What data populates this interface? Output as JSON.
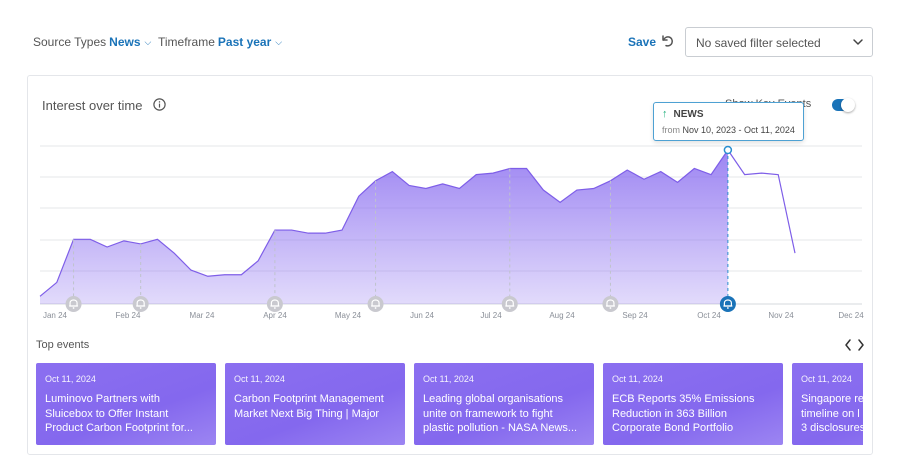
{
  "filters": {
    "source_label": "Source Types",
    "source_value": "News",
    "timeframe_label": "Timeframe",
    "timeframe_value": "Past year"
  },
  "actions": {
    "save_label": "Save",
    "saved_filter_text": "No saved filter selected"
  },
  "chart_card": {
    "title": "Interest over time",
    "toggle_label": "Show Key Events",
    "toggle_on": true
  },
  "tooltip": {
    "series": "NEWS",
    "from_label": "from",
    "range": "Nov 10, 2023 - Oct 11, 2024"
  },
  "chart_data": {
    "type": "area",
    "title": "Interest over time",
    "x_ticks": [
      "Jan 24",
      "Feb 24",
      "Mar 24",
      "Apr 24",
      "May 24",
      "Jun 24",
      "Jul 24",
      "Aug 24",
      "Sep 24",
      "Oct 24",
      "Nov 24",
      "Dec 24"
    ],
    "ylim": [
      0,
      100
    ],
    "grid": true,
    "series": [
      {
        "values": [
          5,
          14,
          42,
          42,
          37,
          41,
          39,
          42,
          33,
          22,
          18,
          19,
          19,
          28,
          48,
          48,
          46,
          46,
          48,
          70,
          80,
          86,
          77,
          75,
          78,
          75,
          84,
          85,
          88,
          88,
          74,
          66,
          74,
          75,
          80,
          87,
          81,
          86,
          79,
          88,
          84,
          100
        ],
        "color": "#8b6ff0"
      },
      {
        "values": [
          100,
          84,
          85,
          84,
          33
        ],
        "color": "#8b6ff0"
      }
    ],
    "key_events": [
      2,
      6,
      14,
      20,
      28,
      34,
      41
    ]
  },
  "events_section": {
    "title": "Top events",
    "cards": [
      {
        "date": "Oct 11, 2024",
        "lines": [
          "Luminovo Partners with",
          "Sluicebox to Offer Instant",
          "Product Carbon Footprint for..."
        ]
      },
      {
        "date": "Oct 11, 2024",
        "lines": [
          "Carbon Footprint Management",
          "Market Next Big Thing | Major"
        ]
      },
      {
        "date": "Oct 11, 2024",
        "lines": [
          "Leading global organisations",
          "unite on framework to fight",
          "plastic pollution - NASA News..."
        ]
      },
      {
        "date": "Oct 11, 2024",
        "lines": [
          "ECB Reports 35% Emissions",
          "Reduction in 363 Billion",
          "Corporate Bond Portfolio"
        ]
      },
      {
        "date": "Oct 11, 2024",
        "lines": [
          "Singapore re",
          "timeline on l",
          "3 disclosures"
        ]
      }
    ]
  },
  "colors": {
    "accent": "#1a73b8",
    "area_fill": "#8b6ff0",
    "event_card": "#8b6ff0",
    "marker_grey": "#c9c9cf",
    "marker_active": "#1a73b8"
  },
  "icons": {
    "undo": "undo-icon",
    "info": "info-icon",
    "bell": "bell-icon",
    "chevron_left": "chevron-left-icon",
    "chevron_right": "chevron-right-icon"
  }
}
